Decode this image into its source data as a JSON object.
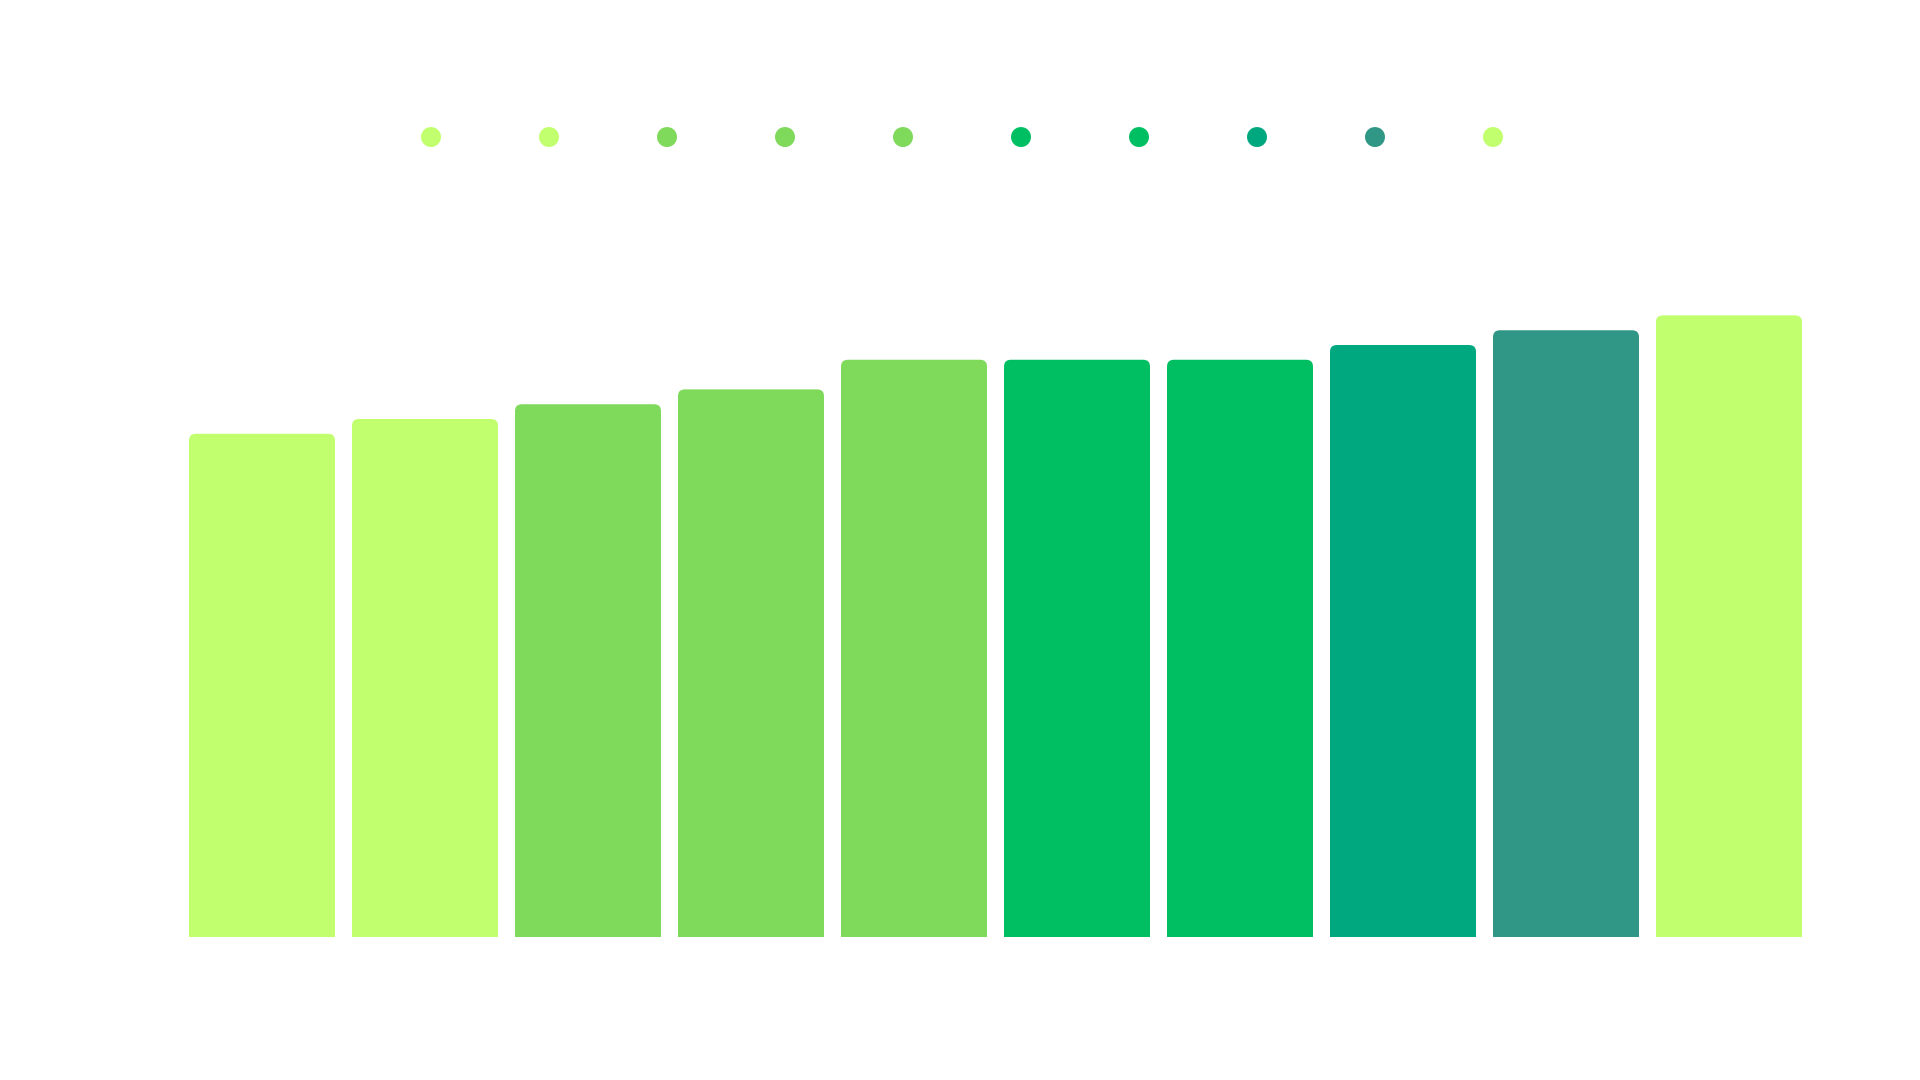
{
  "chart_data": {
    "type": "bar",
    "categories": [
      null,
      null,
      null,
      null,
      null,
      null,
      null,
      null,
      null,
      null
    ],
    "values": [
      34,
      35,
      36,
      37,
      39,
      39,
      39,
      40,
      41,
      42
    ],
    "colors": [
      "#c1ff6e",
      "#c1ff6e",
      "#7fd95a",
      "#7fd95a",
      "#7fd95a",
      "#00bf63",
      "#00bf63",
      "#00a880",
      "#309786",
      "#c1ff6e"
    ],
    "ylim": [
      0,
      45
    ]
  }
}
